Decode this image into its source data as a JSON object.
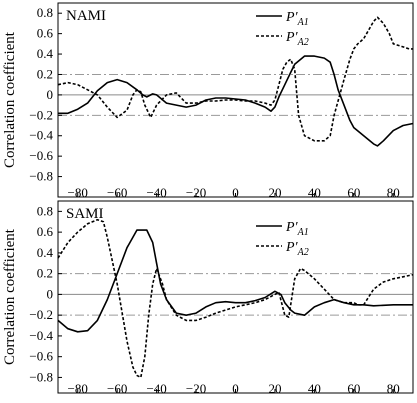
{
  "chart_data": [
    {
      "type": "line",
      "panel_label": "NAMI",
      "ylabel": "Correlation coefficient",
      "xlim": [
        -90,
        90
      ],
      "ylim": [
        -1.0,
        0.9
      ],
      "xticks": [
        -80,
        -60,
        -40,
        -20,
        0,
        20,
        40,
        60,
        80
      ],
      "xtick_labels": [
        "−80",
        "−60",
        "−40",
        "−20",
        "0",
        "20",
        "40",
        "60",
        "80"
      ],
      "yticks": [
        0.8,
        0.6,
        0.4,
        0.2,
        0,
        -0.2,
        -0.4,
        -0.6,
        -0.8
      ],
      "ytick_labels": [
        "0.8",
        "0.6",
        "0.4",
        "0.2",
        "0",
        "−0.2",
        "−0.4",
        "−0.6",
        "−0.8"
      ],
      "reference_lines": [
        0.2,
        -0.2
      ],
      "legend_position": "top-right",
      "series": [
        {
          "name": "P′A1",
          "name_base": "P′",
          "name_sub": "A1",
          "style": "solid",
          "x": [
            -90,
            -85,
            -80,
            -75,
            -70,
            -65,
            -60,
            -55,
            -50,
            -47,
            -45,
            -42,
            -40,
            -35,
            -30,
            -25,
            -20,
            -15,
            -10,
            -5,
            0,
            5,
            10,
            15,
            18,
            20,
            22,
            25,
            28,
            30,
            35,
            40,
            45,
            48,
            50,
            52,
            55,
            58,
            60,
            65,
            70,
            72,
            75,
            80,
            85,
            90
          ],
          "y": [
            -0.18,
            -0.18,
            -0.14,
            -0.08,
            0.04,
            0.12,
            0.15,
            0.12,
            0.05,
            0.0,
            -0.02,
            0.01,
            0.0,
            -0.08,
            -0.1,
            -0.12,
            -0.1,
            -0.05,
            -0.03,
            -0.03,
            -0.04,
            -0.05,
            -0.08,
            -0.12,
            -0.16,
            -0.12,
            -0.02,
            0.1,
            0.22,
            0.3,
            0.38,
            0.38,
            0.36,
            0.32,
            0.2,
            0.05,
            -0.1,
            -0.25,
            -0.32,
            -0.4,
            -0.48,
            -0.5,
            -0.45,
            -0.35,
            -0.3,
            -0.28
          ]
        },
        {
          "name": "P′A2",
          "name_base": "P′",
          "name_sub": "A2",
          "style": "dashed",
          "x": [
            -90,
            -85,
            -80,
            -75,
            -70,
            -65,
            -60,
            -55,
            -52,
            -50,
            -48,
            -46,
            -43,
            -40,
            -35,
            -30,
            -25,
            -20,
            -15,
            -10,
            -5,
            0,
            5,
            10,
            15,
            18,
            20,
            22,
            24,
            26,
            28,
            30,
            32,
            35,
            40,
            45,
            48,
            50,
            55,
            58,
            60,
            62,
            65,
            70,
            72,
            75,
            78,
            80,
            85,
            88,
            90
          ],
          "y": [
            0.1,
            0.12,
            0.1,
            0.05,
            0.0,
            -0.12,
            -0.22,
            -0.15,
            0.0,
            0.05,
            0.03,
            -0.1,
            -0.22,
            -0.1,
            0.0,
            0.02,
            -0.08,
            -0.08,
            -0.06,
            -0.06,
            -0.05,
            -0.05,
            -0.06,
            -0.06,
            -0.08,
            -0.1,
            -0.05,
            0.1,
            0.25,
            0.32,
            0.35,
            0.25,
            -0.2,
            -0.4,
            -0.45,
            -0.45,
            -0.4,
            -0.2,
            0.15,
            0.35,
            0.45,
            0.5,
            0.55,
            0.72,
            0.76,
            0.7,
            0.6,
            0.5,
            0.47,
            0.45,
            0.45
          ]
        }
      ]
    },
    {
      "type": "line",
      "panel_label": "SAMI",
      "ylabel": "Correlation coefficient",
      "xlim": [
        -90,
        90
      ],
      "ylim": [
        -0.95,
        0.9
      ],
      "xticks": [
        -80,
        -60,
        -40,
        -20,
        0,
        20,
        40,
        60,
        80
      ],
      "xtick_labels": [
        "−80",
        "−60",
        "−40",
        "−20",
        "0",
        "20",
        "40",
        "60",
        "80"
      ],
      "yticks": [
        0.8,
        0.6,
        0.4,
        0.2,
        0,
        -0.2,
        -0.4,
        -0.6,
        -0.8
      ],
      "ytick_labels": [
        "0.8",
        "0.6",
        "0.4",
        "0.2",
        "0",
        "−0.2",
        "−0.4",
        "−0.6",
        "−0.8"
      ],
      "reference_lines": [
        0.2,
        -0.2
      ],
      "legend_position": "top-right",
      "series": [
        {
          "name": "P′A1",
          "name_base": "P′",
          "name_sub": "A1",
          "style": "solid",
          "x": [
            -90,
            -85,
            -80,
            -75,
            -70,
            -65,
            -60,
            -55,
            -50,
            -45,
            -42,
            -40,
            -38,
            -35,
            -30,
            -25,
            -20,
            -15,
            -10,
            -5,
            0,
            5,
            10,
            15,
            20,
            23,
            25,
            28,
            30,
            35,
            40,
            45,
            50,
            55,
            60,
            65,
            70,
            80,
            90
          ],
          "y": [
            -0.25,
            -0.33,
            -0.36,
            -0.35,
            -0.25,
            -0.05,
            0.2,
            0.45,
            0.62,
            0.62,
            0.5,
            0.3,
            0.1,
            -0.05,
            -0.18,
            -0.2,
            -0.18,
            -0.12,
            -0.08,
            -0.07,
            -0.08,
            -0.08,
            -0.06,
            -0.03,
            0.03,
            0.0,
            -0.08,
            -0.15,
            -0.18,
            -0.2,
            -0.12,
            -0.08,
            -0.05,
            -0.08,
            -0.1,
            -0.1,
            -0.11,
            -0.1,
            -0.1
          ]
        },
        {
          "name": "P′A2",
          "name_base": "P′",
          "name_sub": "A2",
          "style": "dashed",
          "x": [
            -90,
            -85,
            -80,
            -75,
            -70,
            -67,
            -65,
            -60,
            -55,
            -52,
            -50,
            -48,
            -46,
            -44,
            -42,
            -40,
            -37,
            -35,
            -30,
            -25,
            -20,
            -15,
            -10,
            -5,
            0,
            5,
            10,
            15,
            20,
            22,
            25,
            27,
            28,
            30,
            33,
            35,
            40,
            45,
            50,
            55,
            60,
            62,
            65,
            70,
            75,
            80,
            85,
            90
          ],
          "y": [
            0.35,
            0.5,
            0.6,
            0.68,
            0.72,
            0.7,
            0.55,
            0.1,
            -0.45,
            -0.7,
            -0.78,
            -0.8,
            -0.6,
            -0.2,
            0.1,
            0.25,
            0.1,
            -0.05,
            -0.2,
            -0.25,
            -0.25,
            -0.22,
            -0.18,
            -0.15,
            -0.12,
            -0.1,
            -0.08,
            -0.05,
            0.0,
            0.02,
            -0.2,
            -0.22,
            -0.1,
            0.15,
            0.25,
            0.23,
            0.15,
            0.05,
            -0.05,
            -0.08,
            -0.08,
            -0.1,
            -0.1,
            0.05,
            0.12,
            0.15,
            0.17,
            0.19
          ]
        }
      ]
    }
  ]
}
